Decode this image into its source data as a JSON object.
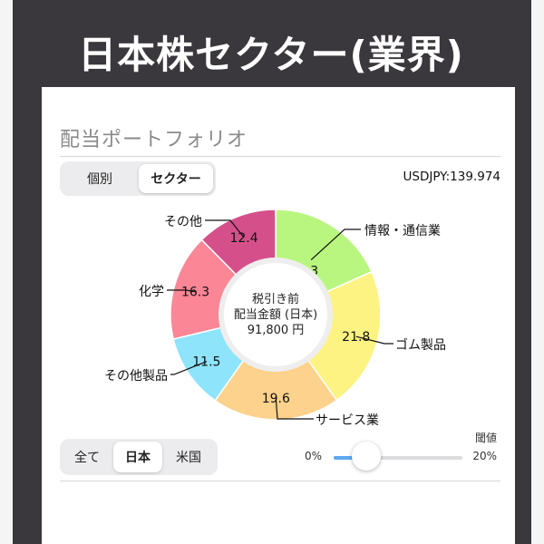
{
  "banner": {
    "title": "日本株セクター(業界)"
  },
  "section": {
    "title": "配当ポートフォリオ"
  },
  "view_toggle": {
    "options": [
      "個別",
      "セクター"
    ],
    "selected": "セクター"
  },
  "fx_rate": "USDJPY:139.974",
  "center": {
    "line1": "税引き前",
    "line2": "配当金額 (日本)",
    "line3": "91,800 円"
  },
  "market_toggle": {
    "options": [
      "全て",
      "日本",
      "米国"
    ],
    "selected": "日本"
  },
  "threshold": {
    "label": "閾値",
    "min_label": "0%",
    "max_label": "20%",
    "value_percent": 0
  },
  "chart_data": {
    "type": "pie",
    "variant": "donut",
    "slices": [
      {
        "label": "情報・通信業",
        "value": 18.3,
        "value_label": "18.3",
        "color": "#b9f67f"
      },
      {
        "label": "ゴム製品",
        "value": 21.8,
        "value_label": "21.8",
        "color": "#fdf383"
      },
      {
        "label": "サービス業",
        "value": 19.6,
        "value_label": "19.6",
        "color": "#fdd28c"
      },
      {
        "label": "その他製品",
        "value": 11.5,
        "value_label": "11.5",
        "color": "#8ee4fb"
      },
      {
        "label": "化学",
        "value": 16.3,
        "value_label": "16.3",
        "color": "#fa8696"
      },
      {
        "label": "その他",
        "value": 12.4,
        "value_label": "12.4",
        "color": "#d5508a"
      }
    ]
  }
}
